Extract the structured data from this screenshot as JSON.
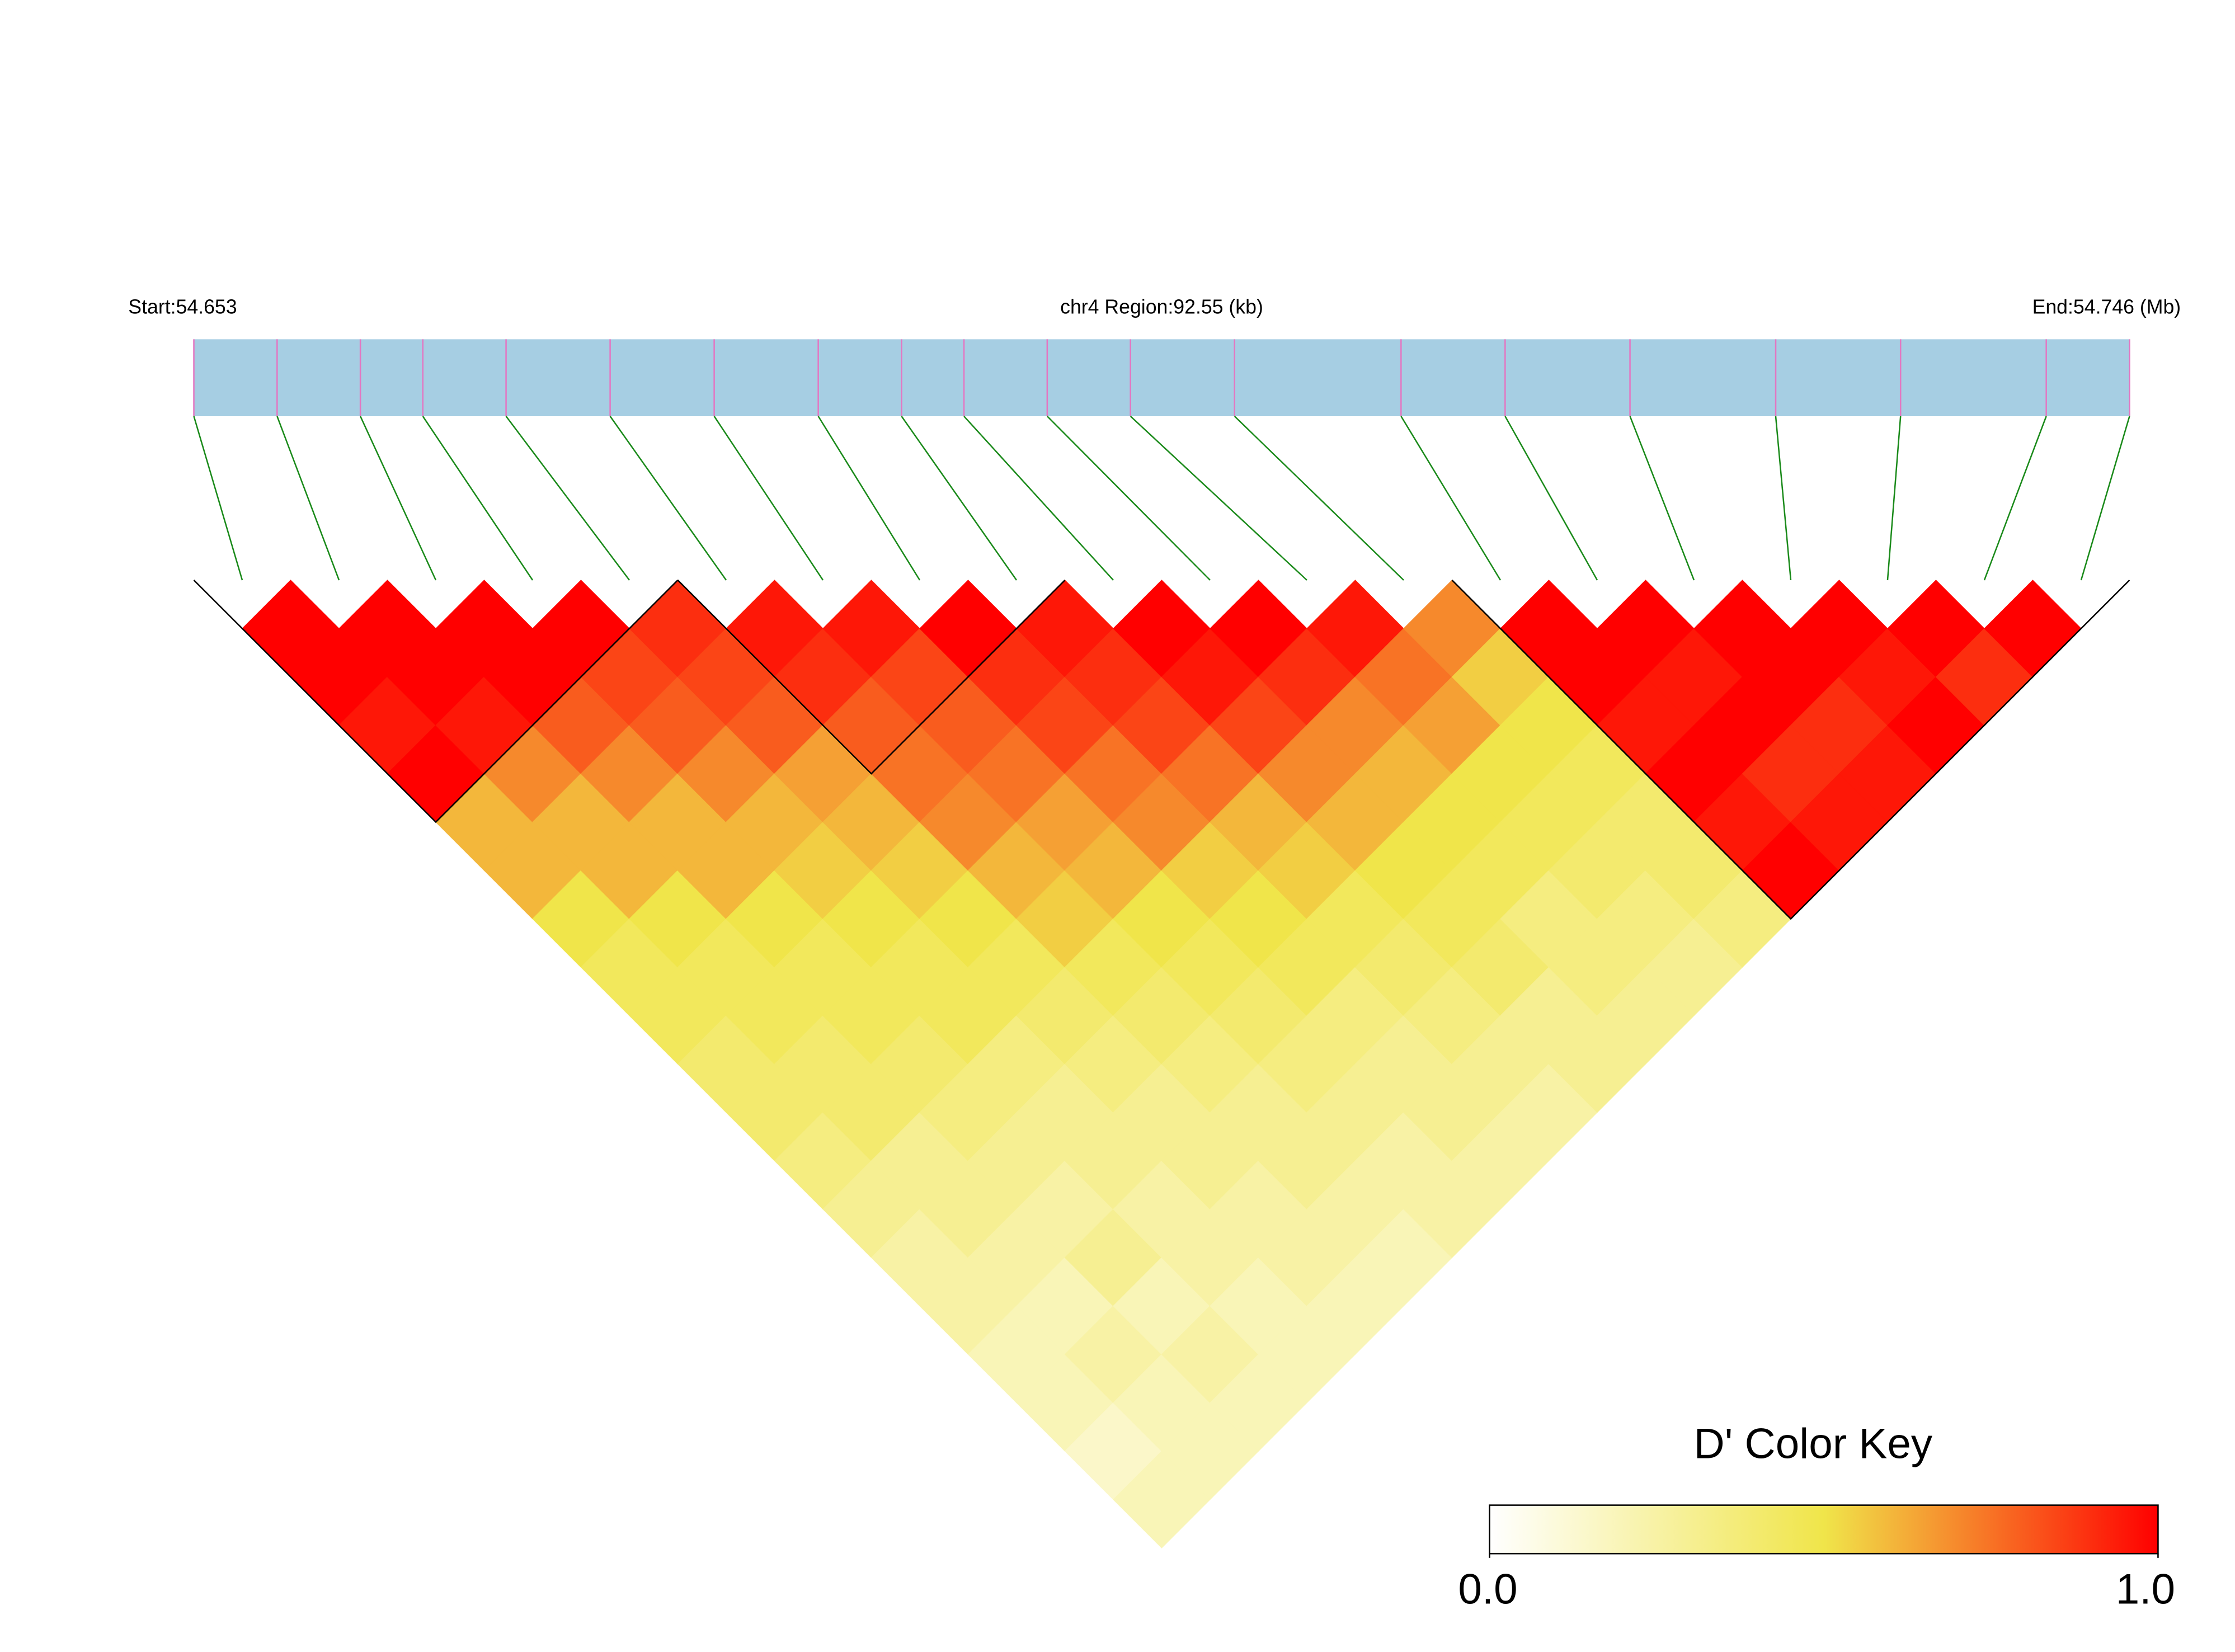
{
  "chart_data": {
    "type": "ld_heatmap",
    "start_label": "Start:54.653",
    "region_label": "chr4 Region:92.55 (kb)",
    "end_label": "End:54.746 (Mb)",
    "xlim": [
      54.653,
      54.746
    ],
    "positions": [
      54.653,
      54.657,
      54.661,
      54.664,
      54.668,
      54.673,
      54.678,
      54.683,
      54.687,
      54.69,
      54.694,
      54.698,
      54.703,
      54.711,
      54.716,
      54.722,
      54.729,
      54.735,
      54.742,
      54.746
    ],
    "dprime": [
      [
        1,
        1,
        0.95,
        1,
        0.6,
        0.6,
        0.5,
        0.45,
        0.45,
        0.4,
        0.4,
        0.35,
        0.3,
        0.25,
        0.25,
        0.2,
        0.2,
        0.15,
        0.2
      ],
      [
        1,
        1,
        0.95,
        0.7,
        0.6,
        0.6,
        0.5,
        0.45,
        0.45,
        0.4,
        0.4,
        0.3,
        0.3,
        0.25,
        0.2,
        0.25,
        0.2,
        0.2
      ],
      [
        1,
        1,
        0.8,
        0.7,
        0.6,
        0.6,
        0.5,
        0.45,
        0.45,
        0.4,
        0.35,
        0.3,
        0.25,
        0.3,
        0.2,
        0.25,
        0.2
      ],
      [
        1,
        0.85,
        0.8,
        0.7,
        0.6,
        0.55,
        0.5,
        0.45,
        0.45,
        0.35,
        0.3,
        0.3,
        0.25,
        0.25,
        0.2,
        0.2
      ],
      [
        0.9,
        0.85,
        0.8,
        0.65,
        0.6,
        0.55,
        0.5,
        0.45,
        0.4,
        0.35,
        0.3,
        0.3,
        0.25,
        0.25,
        0.2
      ],
      [
        0.95,
        0.9,
        0.8,
        0.75,
        0.7,
        0.6,
        0.55,
        0.45,
        0.4,
        0.35,
        0.3,
        0.3,
        0.25,
        0.2
      ],
      [
        0.95,
        0.85,
        0.8,
        0.75,
        0.65,
        0.6,
        0.5,
        0.45,
        0.4,
        0.35,
        0.3,
        0.25,
        0.25
      ],
      [
        1,
        0.9,
        0.85,
        0.75,
        0.7,
        0.55,
        0.5,
        0.45,
        0.35,
        0.3,
        0.3,
        0.25
      ],
      [
        0.95,
        0.9,
        0.85,
        0.75,
        0.6,
        0.55,
        0.45,
        0.4,
        0.35,
        0.3,
        0.25
      ],
      [
        1,
        0.95,
        0.85,
        0.7,
        0.6,
        0.5,
        0.45,
        0.4,
        0.3,
        0.3
      ],
      [
        1,
        0.9,
        0.7,
        0.6,
        0.5,
        0.45,
        0.35,
        0.35,
        0.3
      ],
      [
        0.95,
        0.75,
        0.65,
        0.5,
        0.45,
        0.4,
        0.35,
        0.3
      ],
      [
        0.7,
        0.55,
        0.5,
        0.45,
        0.4,
        0.4,
        0.35
      ],
      [
        1,
        1,
        0.95,
        1,
        0.95,
        1
      ],
      [
        1,
        0.95,
        1,
        0.9,
        0.95
      ],
      [
        1,
        1,
        0.9,
        0.95
      ],
      [
        1,
        0.95,
        1
      ],
      [
        1,
        0.9
      ],
      [
        1
      ]
    ],
    "ld_blocks": [
      [
        0,
        4
      ],
      [
        5,
        8
      ],
      [
        13,
        19
      ]
    ],
    "key_title": "D' Color Key",
    "colorscale": [
      [
        0,
        "#ffffff"
      ],
      [
        0.5,
        "#f0e54a"
      ],
      [
        1,
        "#ff0000"
      ]
    ],
    "clim": [
      0,
      1
    ],
    "cticks": [
      {
        "value": 0,
        "label": "0.0"
      },
      {
        "value": 1,
        "label": "1.0"
      }
    ],
    "bar_color": "#a6cee3",
    "snp_color": "#e377c2",
    "link_color": "#1a8a1a"
  }
}
